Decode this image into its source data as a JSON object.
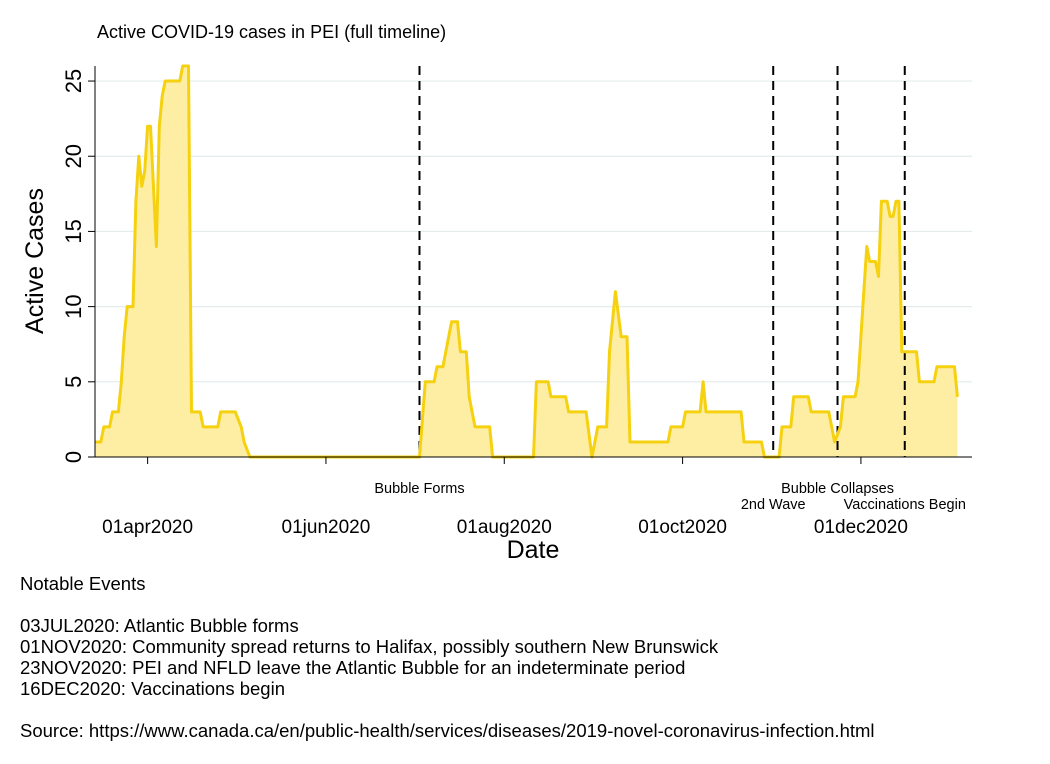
{
  "chart_data": {
    "type": "area",
    "title": "Active COVID-19 cases in PEI (full timeline)",
    "xlabel": "Date",
    "ylabel": "Active Cases",
    "ylim": [
      0,
      26
    ],
    "xlim": [
      "2020-03-14",
      "2021-01-08"
    ],
    "yticks": [
      0,
      5,
      10,
      15,
      20,
      25
    ],
    "xticks": [
      {
        "date": "2020-04-01",
        "label": "01apr2020"
      },
      {
        "date": "2020-06-01",
        "label": "01jun2020"
      },
      {
        "date": "2020-08-01",
        "label": "01aug2020"
      },
      {
        "date": "2020-10-01",
        "label": "01oct2020"
      },
      {
        "date": "2020-12-01",
        "label": "01dec2020"
      }
    ],
    "grid": "horizontal",
    "series": [
      {
        "color": "#f5d110",
        "fill": "#fdeea4",
        "points": [
          [
            "2020-03-14",
            1
          ],
          [
            "2020-03-16",
            1
          ],
          [
            "2020-03-17",
            2
          ],
          [
            "2020-03-19",
            2
          ],
          [
            "2020-03-20",
            3
          ],
          [
            "2020-03-22",
            3
          ],
          [
            "2020-03-23",
            5
          ],
          [
            "2020-03-24",
            8
          ],
          [
            "2020-03-25",
            10
          ],
          [
            "2020-03-27",
            10
          ],
          [
            "2020-03-28",
            17
          ],
          [
            "2020-03-29",
            20
          ],
          [
            "2020-03-30",
            18
          ],
          [
            "2020-03-31",
            19
          ],
          [
            "2020-04-01",
            22
          ],
          [
            "2020-04-02",
            22
          ],
          [
            "2020-04-04",
            14
          ],
          [
            "2020-04-05",
            22
          ],
          [
            "2020-04-06",
            24
          ],
          [
            "2020-04-07",
            25
          ],
          [
            "2020-04-12",
            25
          ],
          [
            "2020-04-13",
            26
          ],
          [
            "2020-04-15",
            26
          ],
          [
            "2020-04-16",
            3
          ],
          [
            "2020-04-19",
            3
          ],
          [
            "2020-04-20",
            2
          ],
          [
            "2020-04-25",
            2
          ],
          [
            "2020-04-26",
            3
          ],
          [
            "2020-05-01",
            3
          ],
          [
            "2020-05-03",
            2
          ],
          [
            "2020-05-04",
            1
          ],
          [
            "2020-05-06",
            0
          ],
          [
            "2020-07-03",
            0
          ],
          [
            "2020-07-05",
            5
          ],
          [
            "2020-07-08",
            5
          ],
          [
            "2020-07-09",
            6
          ],
          [
            "2020-07-11",
            6
          ],
          [
            "2020-07-12",
            7
          ],
          [
            "2020-07-14",
            9
          ],
          [
            "2020-07-16",
            9
          ],
          [
            "2020-07-17",
            7
          ],
          [
            "2020-07-19",
            7
          ],
          [
            "2020-07-20",
            4
          ],
          [
            "2020-07-21",
            3
          ],
          [
            "2020-07-22",
            2
          ],
          [
            "2020-07-27",
            2
          ],
          [
            "2020-07-28",
            0
          ],
          [
            "2020-08-11",
            0
          ],
          [
            "2020-08-12",
            5
          ],
          [
            "2020-08-16",
            5
          ],
          [
            "2020-08-17",
            4
          ],
          [
            "2020-08-22",
            4
          ],
          [
            "2020-08-23",
            3
          ],
          [
            "2020-08-29",
            3
          ],
          [
            "2020-08-31",
            0
          ],
          [
            "2020-09-02",
            2
          ],
          [
            "2020-09-05",
            2
          ],
          [
            "2020-09-06",
            7
          ],
          [
            "2020-09-08",
            11
          ],
          [
            "2020-09-10",
            8
          ],
          [
            "2020-09-12",
            8
          ],
          [
            "2020-09-13",
            1
          ],
          [
            "2020-09-26",
            1
          ],
          [
            "2020-09-27",
            2
          ],
          [
            "2020-10-01",
            2
          ],
          [
            "2020-10-02",
            3
          ],
          [
            "2020-10-07",
            3
          ],
          [
            "2020-10-08",
            5
          ],
          [
            "2020-10-09",
            3
          ],
          [
            "2020-10-21",
            3
          ],
          [
            "2020-10-22",
            1
          ],
          [
            "2020-10-28",
            1
          ],
          [
            "2020-10-29",
            0
          ],
          [
            "2020-11-03",
            0
          ],
          [
            "2020-11-04",
            2
          ],
          [
            "2020-11-07",
            2
          ],
          [
            "2020-11-08",
            4
          ],
          [
            "2020-11-13",
            4
          ],
          [
            "2020-11-14",
            3
          ],
          [
            "2020-11-20",
            3
          ],
          [
            "2020-11-22",
            1
          ],
          [
            "2020-11-24",
            2
          ],
          [
            "2020-11-25",
            4
          ],
          [
            "2020-11-29",
            4
          ],
          [
            "2020-11-30",
            5
          ],
          [
            "2020-12-02",
            11
          ],
          [
            "2020-12-03",
            14
          ],
          [
            "2020-12-04",
            13
          ],
          [
            "2020-12-06",
            13
          ],
          [
            "2020-12-07",
            12
          ],
          [
            "2020-12-08",
            17
          ],
          [
            "2020-12-10",
            17
          ],
          [
            "2020-12-11",
            16
          ],
          [
            "2020-12-12",
            16
          ],
          [
            "2020-12-13",
            17
          ],
          [
            "2020-12-14",
            17
          ],
          [
            "2020-12-15",
            7
          ],
          [
            "2020-12-20",
            7
          ],
          [
            "2020-12-21",
            5
          ],
          [
            "2020-12-26",
            5
          ],
          [
            "2020-12-27",
            6
          ],
          [
            "2021-01-02",
            6
          ],
          [
            "2021-01-03",
            4
          ]
        ]
      }
    ],
    "events": [
      {
        "date": "2020-07-03",
        "label": "Bubble Forms",
        "row": 1
      },
      {
        "date": "2020-11-01",
        "label": "2nd Wave",
        "row": 2
      },
      {
        "date": "2020-11-23",
        "label": "Bubble Collapses",
        "row": 1
      },
      {
        "date": "2020-12-16",
        "label": "Vaccinations Begin",
        "row": 2
      }
    ]
  },
  "notes": {
    "heading": "Notable Events",
    "items": [
      "03JUL2020: Atlantic Bubble forms",
      "01NOV2020: Community spread returns to Halifax, possibly southern New Brunswick",
      "23NOV2020: PEI and NFLD leave the Atlantic Bubble for an indeterminate period",
      "16DEC2020: Vaccinations begin"
    ],
    "source": "Source: https://www.canada.ca/en/public-health/services/diseases/2019-novel-coronavirus-infection.html"
  }
}
